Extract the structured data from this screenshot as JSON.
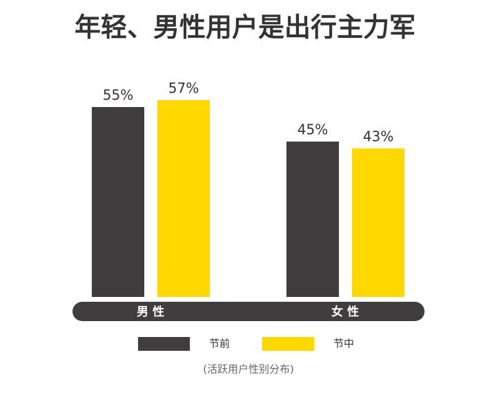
{
  "chart_data": {
    "type": "bar",
    "title": "年轻、男性用户是出行主力军",
    "categories": [
      "男 性",
      "女 性"
    ],
    "series": [
      {
        "name": "节前",
        "color": "#3f3d3e",
        "values": [
          55,
          45
        ],
        "value_labels": [
          "55%",
          "45%"
        ]
      },
      {
        "name": "节中",
        "color": "#ffd800",
        "values": [
          57,
          43
        ],
        "value_labels": [
          "57%",
          "43%"
        ]
      }
    ],
    "note": "(活跃用户性别分布)"
  }
}
